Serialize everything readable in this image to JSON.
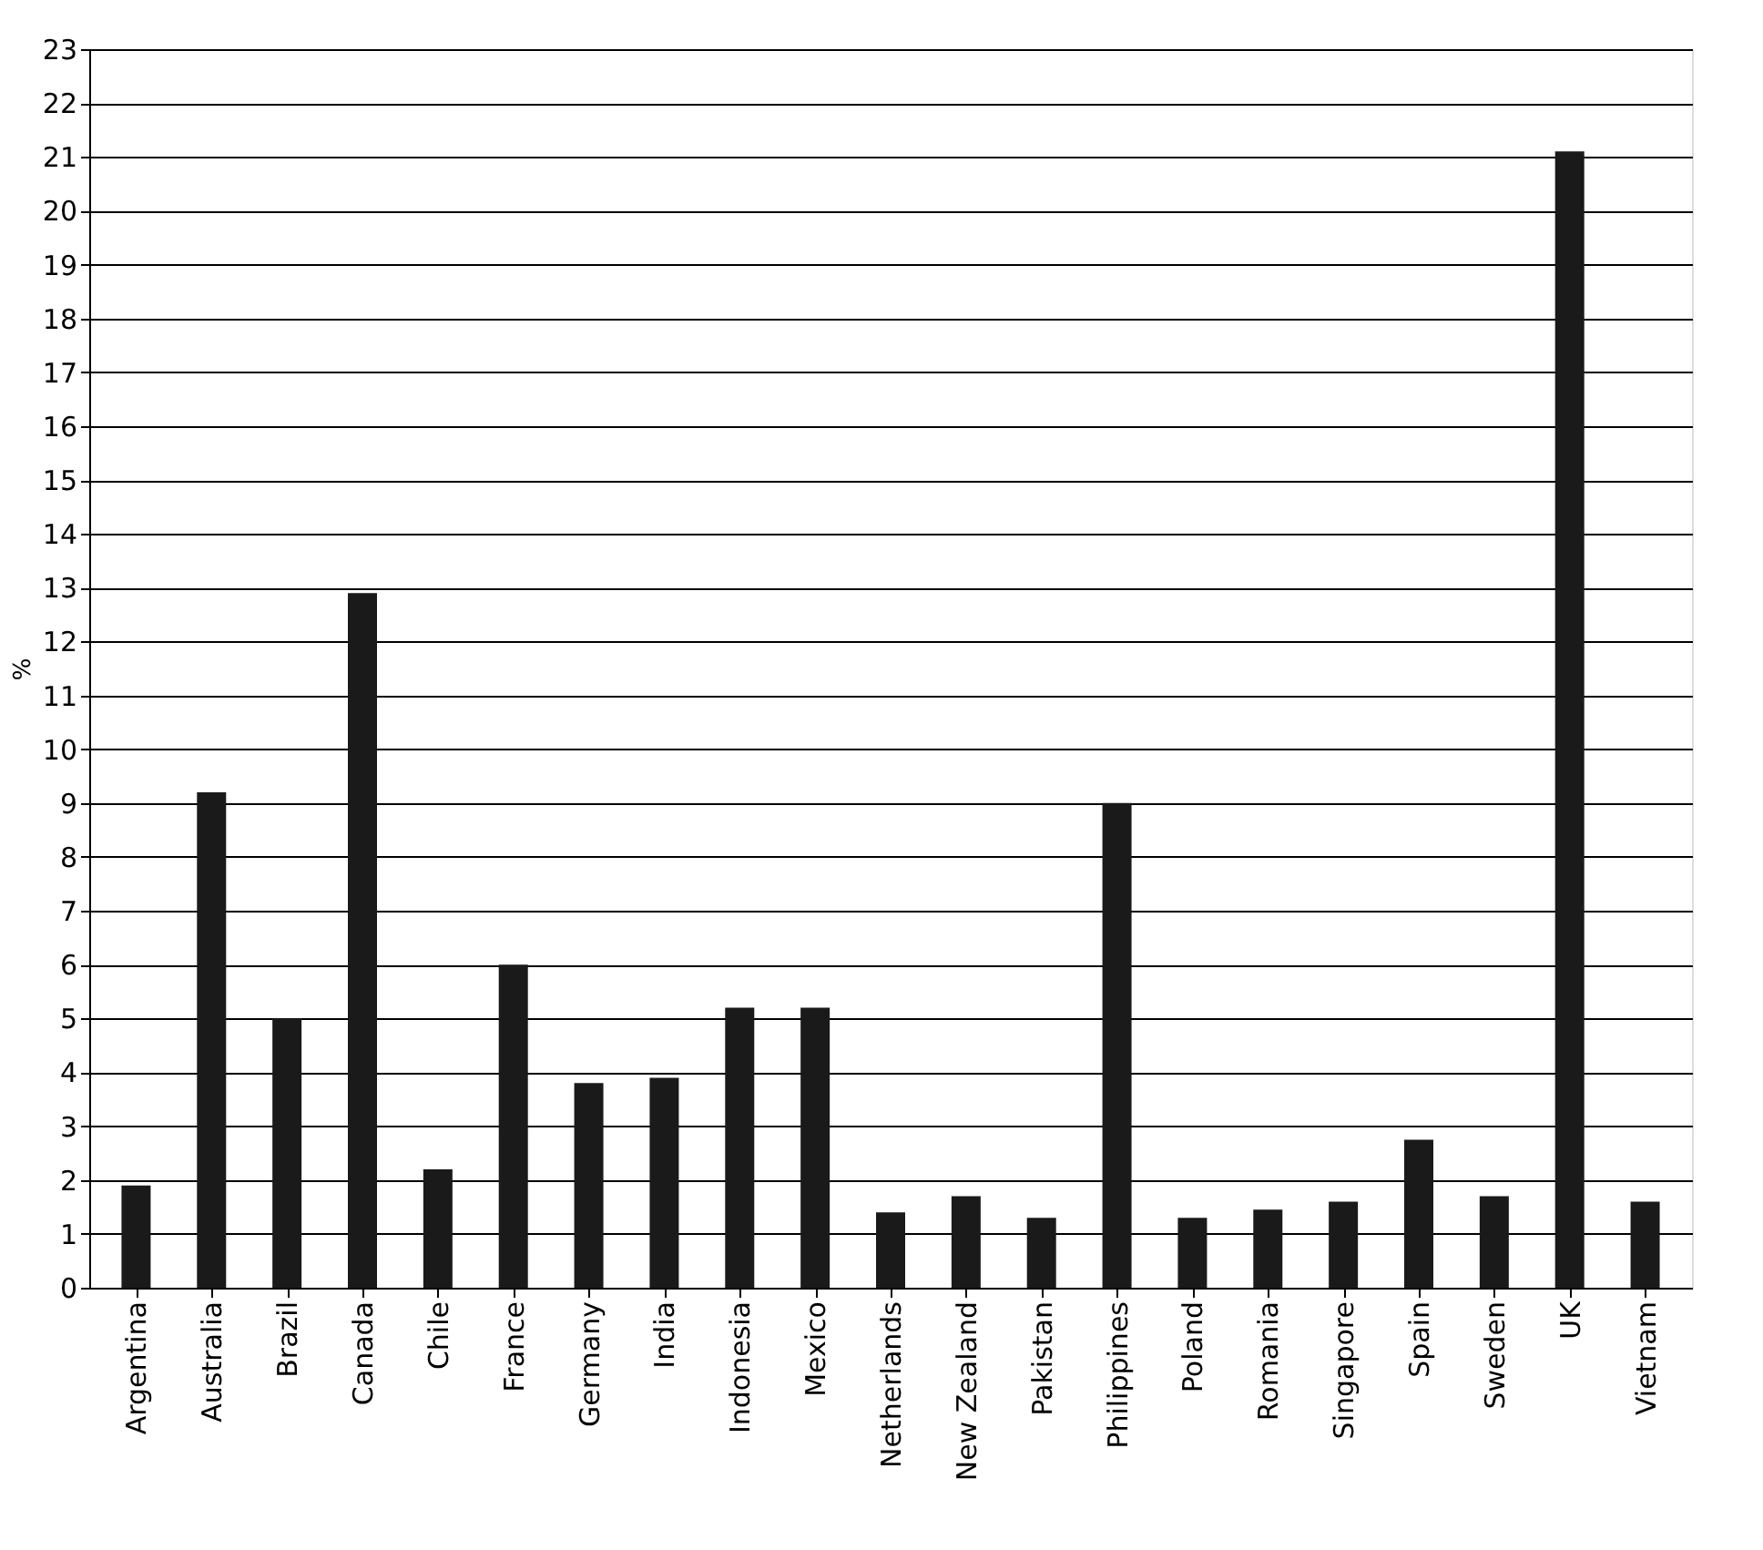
{
  "chart_data": {
    "type": "bar",
    "ylabel": "%",
    "categories": [
      "Argentina",
      "Australia",
      "Brazil",
      "Canada",
      "Chile",
      "France",
      "Germany",
      "India",
      "Indonesia",
      "Mexico",
      "Netherlands",
      "New Zealand",
      "Pakistan",
      "Philippines",
      "Poland",
      "Romania",
      "Singapore",
      "Spain",
      "Sweden",
      "UK",
      "Vietnam"
    ],
    "values": [
      1.9,
      9.2,
      5.0,
      12.9,
      2.2,
      6.0,
      3.8,
      3.9,
      5.2,
      5.2,
      1.4,
      1.7,
      1.3,
      9.0,
      1.3,
      1.45,
      1.6,
      2.75,
      1.7,
      21.1,
      1.6
    ],
    "color": "#1a1a1a",
    "ylim": [
      0,
      23
    ],
    "yticks": [
      0,
      1,
      2,
      3,
      4,
      5,
      6,
      7,
      8,
      9,
      10,
      11,
      12,
      13,
      14,
      15,
      16,
      17,
      18,
      19,
      20,
      21,
      22,
      23
    ],
    "grid": "y"
  }
}
